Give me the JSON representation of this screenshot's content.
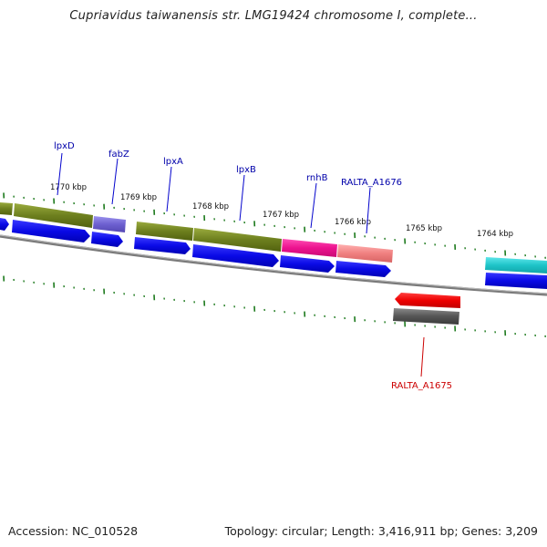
{
  "title": "Cupriavidus taiwanensis str. LMG19424 chromosome I, complete...",
  "footer": {
    "accession": "Accession: NC_010528",
    "topology": "Topology: circular; Length: 3,416,911 bp; Genes: 3,209"
  },
  "kbp_labels": [
    "1770 kbp",
    "1769 kbp",
    "1768 kbp",
    "1767 kbp",
    "1766 kbp",
    "1765 kbp",
    "1764 kbp"
  ],
  "gene_labels": [
    {
      "text": "lpxD",
      "color": "#0000aa"
    },
    {
      "text": "fabZ",
      "color": "#0000aa"
    },
    {
      "text": "lpxA",
      "color": "#0000aa"
    },
    {
      "text": "lpxB",
      "color": "#0000aa"
    },
    {
      "text": "rnhB",
      "color": "#0000aa"
    },
    {
      "text": "RALTA_A1676",
      "color": "#0000aa"
    },
    {
      "text": "RALTA_A1675",
      "color": "#cc0000"
    }
  ],
  "colors": {
    "cds": "#1010e0",
    "olive": "#7a8c28",
    "purple": "#7a6ed8",
    "magenta": "#f0189a",
    "salmon": "#f28888",
    "cyan": "#22c8cc",
    "red": "#ee0000",
    "gray": "#555555",
    "tick": "#1d7a1d"
  }
}
